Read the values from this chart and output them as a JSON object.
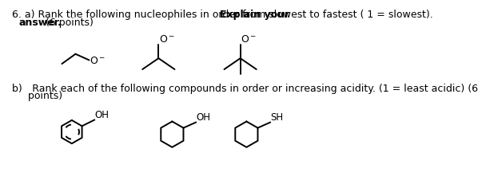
{
  "bg_color": "#ffffff",
  "line_color": "#000000",
  "lw": 1.4,
  "font_size": 9.0,
  "mol_font_size": 9.0,
  "label_font_size": 8.5,
  "text_line1": "6. a) Rank the following nucleophiles in order from slowest to fastest ( 1 = slowest). ",
  "text_bold1": "Explain your",
  "text_line2_bold": "answer.",
  "text_line2_normal": " (6 points)",
  "text_partb_line1": "b) Rank each of the following compounds in order or increasing acidity. (1 = least acidic) (6",
  "text_partb_line2": "     points)"
}
